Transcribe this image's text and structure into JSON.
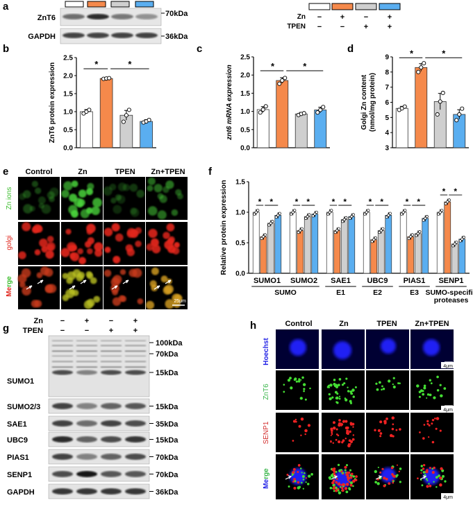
{
  "colors": {
    "control": "#ffffff",
    "zn": "#f5894b",
    "tpen": "#cfcfcf",
    "zntpen": "#5aaef0",
    "zn_ions": "#4ad23a",
    "golgi": "#e2281e",
    "hoechst": "#2020ff",
    "znt6_label": "#39b54a",
    "senp1_label": "#d22b2b"
  },
  "panel_a": {
    "letter": "a",
    "marker_top": "70kDa",
    "marker_bottom": "36kDa",
    "rows": [
      "ZnT6",
      "GAPDH"
    ]
  },
  "treatment_legend": {
    "row_labels": [
      "Zn",
      "TPEN"
    ],
    "zn_signs": [
      "−",
      "+",
      "−",
      "+"
    ],
    "tpen_signs": [
      "−",
      "−",
      "+",
      "+"
    ]
  },
  "panel_b": {
    "letter": "b",
    "sig": [
      "*",
      "*"
    ],
    "chart_data": {
      "type": "bar",
      "ylabel": "ZnT6 protein expression",
      "ylim": [
        0,
        2.5
      ],
      "yticks": [
        "0.0",
        "0.5",
        "1.0",
        "1.5",
        "2.0",
        "2.5"
      ],
      "values": [
        1.0,
        1.92,
        0.9,
        0.73
      ],
      "points": [
        [
          0.95,
          1.0,
          1.05
        ],
        [
          1.91,
          1.92,
          1.93
        ],
        [
          0.72,
          0.9,
          1.05
        ],
        [
          0.7,
          0.73,
          0.77
        ]
      ]
    }
  },
  "panel_c": {
    "letter": "c",
    "sig": [
      "*",
      "*"
    ],
    "chart_data": {
      "type": "bar",
      "ylabel": "znt6 mRNA expression",
      "ylim": [
        0,
        2.5
      ],
      "yticks": [
        "0.0",
        "0.5",
        "1.0",
        "1.5",
        "2.0",
        "2.5"
      ],
      "values": [
        1.05,
        1.85,
        0.93,
        1.04
      ],
      "points": [
        [
          0.97,
          1.05,
          1.14
        ],
        [
          1.76,
          1.85,
          1.92
        ],
        [
          0.9,
          0.93,
          0.95
        ],
        [
          0.97,
          1.04,
          1.12
        ]
      ]
    }
  },
  "panel_d": {
    "letter": "d",
    "sig": [
      "*",
      "*"
    ],
    "chart_data": {
      "type": "bar",
      "ylabel": "Golgi Zn content",
      "ylabel_unit": "(nmol/mg protein)",
      "ylim": [
        3,
        9
      ],
      "yticks": [
        "3",
        "4",
        "5",
        "6",
        "7",
        "8",
        "9"
      ],
      "values": [
        5.6,
        8.3,
        6.05,
        5.2
      ],
      "points": [
        [
          5.5,
          5.6,
          5.72
        ],
        [
          8.0,
          8.3,
          8.58
        ],
        [
          5.2,
          6.05,
          6.62
        ],
        [
          4.82,
          5.2,
          5.58
        ]
      ]
    }
  },
  "panel_e": {
    "letter": "e",
    "columns": [
      "Control",
      "Zn",
      "TPEN",
      "Zn+TPEN"
    ],
    "rows": [
      "Zn ions",
      "golgi",
      "Merge"
    ],
    "scale_bar": "25μm"
  },
  "panel_f": {
    "letter": "f",
    "chart_data": {
      "type": "bar",
      "ylabel": "Relative protein expression",
      "ylim": [
        0,
        1.5
      ],
      "yticks": [
        "0.0",
        "0.5",
        "1.0",
        "1.5"
      ],
      "categories": [
        "SUMO1",
        "SUMO2",
        "SAE1",
        "UBC9",
        "PIAS1",
        "SENP1"
      ],
      "groups": [
        {
          "name": "SUMO",
          "span": [
            0,
            1
          ]
        },
        {
          "name": "E1",
          "span": [
            2,
            2
          ]
        },
        {
          "name": "E2",
          "span": [
            3,
            3
          ]
        },
        {
          "name": "E3",
          "span": [
            4,
            4
          ]
        },
        {
          "name": "SUMO-specific proteases",
          "span": [
            5,
            5
          ]
        }
      ],
      "values": [
        [
          1.0,
          0.6,
          0.82,
          0.95
        ],
        [
          1.0,
          0.7,
          0.93,
          0.97
        ],
        [
          1.0,
          0.7,
          0.88,
          0.93
        ],
        [
          1.0,
          0.55,
          0.7,
          0.95
        ],
        [
          1.0,
          0.6,
          0.65,
          0.9
        ],
        [
          1.0,
          1.17,
          0.48,
          0.56
        ]
      ]
    }
  },
  "panel_g": {
    "letter": "g",
    "zn_label": "Zn",
    "tpen_label": "TPEN",
    "zn_signs": [
      "−",
      "+",
      "−",
      "+"
    ],
    "tpen_signs": [
      "−",
      "−",
      "+",
      "+"
    ],
    "sumo1_label": "SUMO1",
    "sumo1_markers": [
      "100kDa",
      "70kDa",
      "15kDa"
    ],
    "blots": [
      {
        "label": "SUMO2/3",
        "marker": "15kDa"
      },
      {
        "label": "SAE1",
        "marker": "35kDa"
      },
      {
        "label": "UBC9",
        "marker": "15kDa"
      },
      {
        "label": "PIAS1",
        "marker": "70kDa"
      },
      {
        "label": "SENP1",
        "marker": "70kDa"
      },
      {
        "label": "GAPDH",
        "marker": "36kDa"
      }
    ]
  },
  "panel_h": {
    "letter": "h",
    "columns": [
      "Control",
      "Zn",
      "TPEN",
      "Zn+TPEN"
    ],
    "rows": [
      "Hoechst",
      "ZnT6",
      "SENP1",
      "Merge"
    ],
    "scale_bar": "4μm"
  }
}
